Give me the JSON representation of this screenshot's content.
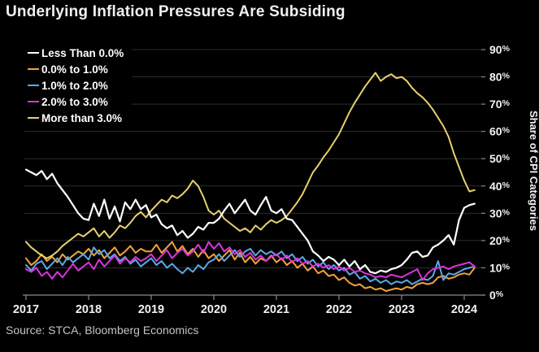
{
  "title": "Underlying Inflation Pressures Are Subsiding",
  "source": "Source: STCA, Bloomberg Economics",
  "colors": {
    "background": "#000000",
    "grid": "#2d2d2d",
    "axis": "#8a8a8a",
    "tick_label": "#f2f2f2",
    "title": "#f0f0f0",
    "source_text": "#c4c4c4"
  },
  "chart_data": {
    "type": "line",
    "title": "Underlying Inflation Pressures Are Subsiding",
    "xlabel": "",
    "ylabel": "Share of CPI Categories",
    "ylim": [
      0,
      90
    ],
    "grid": true,
    "legend_position": "top-left",
    "x_ticks": [
      "2017",
      "2018",
      "2019",
      "2020",
      "2021",
      "2022",
      "2023",
      "2024"
    ],
    "y_ticks": [
      "0%",
      "10%",
      "20%",
      "30%",
      "40%",
      "50%",
      "60%",
      "70%",
      "80%",
      "90%"
    ],
    "x_unit": "monthly, Jan 2017 - Mar 2024",
    "points_per_year": 12,
    "series": [
      {
        "name": "Less Than 0.0%",
        "color": "#ffffff",
        "values": [
          46,
          45,
          44,
          45.5,
          42.5,
          44.5,
          41,
          38.5,
          36,
          33,
          30,
          28,
          27.5,
          33.5,
          29,
          35,
          28,
          32.5,
          27,
          34,
          31.5,
          35,
          31.5,
          33,
          28.5,
          29.5,
          26,
          24.5,
          25.5,
          22,
          23.5,
          21,
          22.5,
          25,
          24,
          26.5,
          26.5,
          28,
          31,
          33.5,
          30,
          32.5,
          35,
          31,
          29.5,
          33,
          36,
          31,
          30,
          31.5,
          28,
          27.5,
          25,
          22.5,
          20,
          16,
          14.5,
          12.5,
          14,
          13,
          11,
          13,
          10.5,
          12.5,
          9.5,
          11,
          8.5,
          8,
          9,
          8.5,
          9.5,
          10,
          11,
          13,
          15.5,
          16,
          14,
          14.5,
          17.5,
          18.5,
          20,
          22,
          18.5,
          27.5,
          32,
          33,
          33.5
        ]
      },
      {
        "name": "0.0% to 1.0%",
        "color": "#f2a33b",
        "values": [
          13.5,
          11,
          12.5,
          15,
          12.5,
          14,
          12,
          15,
          13,
          14.5,
          16,
          15,
          17,
          14.5,
          16.5,
          13.5,
          15.5,
          17.5,
          14.5,
          16,
          18,
          15.5,
          17,
          16,
          16,
          18.5,
          15.5,
          17.5,
          19.5,
          16,
          18,
          15,
          17,
          14,
          16.5,
          13.5,
          15,
          12.5,
          14.5,
          16.5,
          13,
          15.5,
          12,
          14,
          11.5,
          13.5,
          12.5,
          14.5,
          12,
          13.5,
          11,
          12.5,
          10,
          11.5,
          9,
          10.5,
          8,
          9,
          7,
          7.5,
          5.5,
          6.5,
          4.5,
          3.5,
          4,
          2.5,
          3,
          2,
          2.5,
          1.5,
          2,
          2.5,
          2,
          3,
          2.5,
          4,
          4.5,
          4,
          4.5,
          6.5,
          7,
          6,
          6.5,
          7.5,
          8,
          7.5,
          10
        ]
      },
      {
        "name": "1.0% to 2.0%",
        "color": "#59a9e8",
        "values": [
          11,
          9,
          11.5,
          12.5,
          9.5,
          11.5,
          13.5,
          11,
          14,
          12,
          13.5,
          15,
          13,
          17.5,
          15,
          16.5,
          13.5,
          15,
          12.5,
          14,
          11.5,
          13,
          10.5,
          12,
          13.5,
          11,
          12.5,
          10,
          11.5,
          9.5,
          8,
          10,
          8.5,
          11,
          9.5,
          12,
          13,
          15,
          12.5,
          14.5,
          16.5,
          14,
          16,
          17,
          14.5,
          16.5,
          15,
          16,
          14.5,
          16,
          13.5,
          15,
          12.5,
          14,
          11.5,
          13,
          10.5,
          12,
          9.5,
          11,
          9,
          10,
          7.5,
          8.5,
          6,
          7,
          5,
          6,
          4.5,
          5.5,
          4,
          5,
          4.5,
          5.5,
          4,
          5,
          6,
          5.5,
          7,
          12.5,
          5.5,
          8,
          7.5,
          8.5,
          9.5,
          10,
          10.5
        ]
      },
      {
        "name": "2.0% to 3.0%",
        "color": "#dd33dd",
        "values": [
          9.5,
          8.5,
          10,
          7,
          8.5,
          6,
          8.5,
          6.5,
          9,
          11.5,
          9,
          10.5,
          12,
          9.5,
          13,
          10.5,
          12.5,
          14.5,
          11.5,
          13.5,
          12,
          14,
          12.5,
          13.5,
          15,
          12.5,
          14.5,
          16.5,
          13.5,
          15.5,
          17,
          14.5,
          16,
          18.5,
          15.5,
          19.5,
          17,
          19,
          16,
          17.5,
          15,
          16.5,
          14,
          15.5,
          13,
          14.5,
          12.5,
          14,
          15,
          13,
          14.5,
          12,
          13.5,
          11.5,
          12.5,
          10.5,
          11.5,
          10,
          11,
          9.5,
          10.5,
          9,
          10,
          8.5,
          9,
          8,
          7.5,
          6.5,
          7,
          6.5,
          7.5,
          7,
          6.5,
          7.5,
          8.5,
          9.5,
          5.5,
          8,
          9.5,
          10,
          10.5,
          9.5,
          10.5,
          11,
          11.5,
          12,
          10.5
        ]
      },
      {
        "name": "More than 3.0%",
        "color": "#e7d06e",
        "values": [
          19.5,
          17.5,
          16,
          14.5,
          13.5,
          14.5,
          16,
          18,
          19.5,
          21,
          22.5,
          21.5,
          23,
          24.5,
          21.5,
          23.5,
          21,
          23,
          25.5,
          24.5,
          26.5,
          29,
          30.5,
          28.5,
          31,
          33,
          35,
          34,
          36.5,
          35.5,
          37,
          39,
          42,
          40,
          36,
          31,
          29.5,
          31,
          28,
          26.5,
          25,
          23.5,
          24.5,
          23,
          25.5,
          24,
          26,
          27.5,
          26.5,
          27.5,
          29,
          31.5,
          34,
          37,
          41,
          45,
          47.5,
          50.5,
          53,
          56,
          59,
          63,
          67,
          70.5,
          73.5,
          76.5,
          79,
          81.5,
          78.5,
          80,
          81,
          79.5,
          80,
          78.5,
          76,
          74,
          72.5,
          70.5,
          68,
          65,
          62,
          58,
          52,
          47,
          42,
          38,
          38.5
        ]
      }
    ]
  }
}
